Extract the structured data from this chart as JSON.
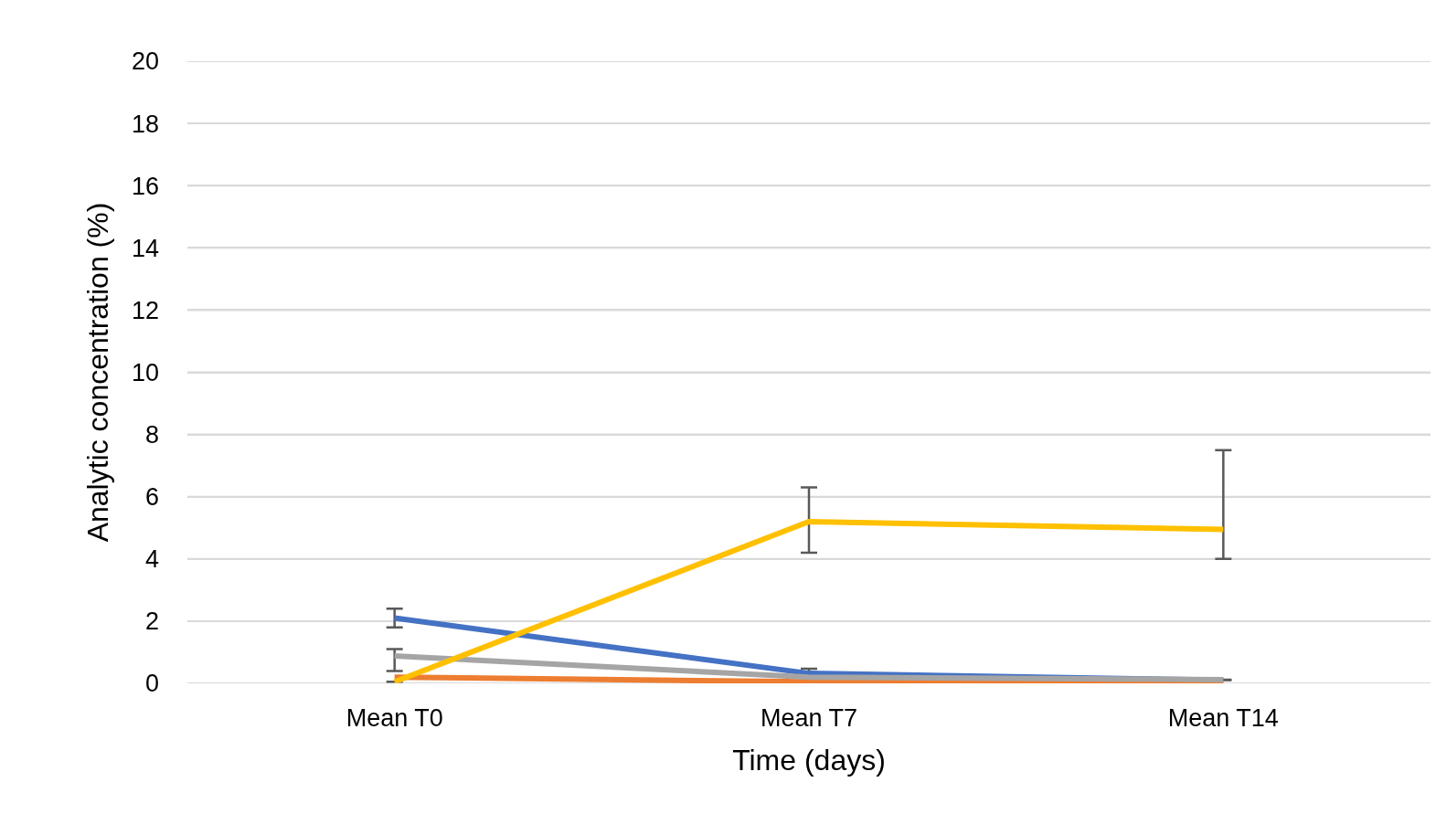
{
  "chart_data": {
    "type": "line",
    "xlabel": "Time (days)",
    "ylabel": "Analytic concentration (%)",
    "categories": [
      "Mean T0",
      "Mean T7",
      "Mean T14"
    ],
    "ylim": [
      0,
      20
    ],
    "yticks": [
      0,
      2,
      4,
      6,
      8,
      10,
      12,
      14,
      16,
      18,
      20
    ],
    "grid": "y",
    "marker": "none",
    "series": [
      {
        "color": "#4472c4",
        "values": [
          2.1,
          0.32,
          0.1
        ],
        "errors": [
          [
            1.8,
            2.4
          ],
          [
            0.17,
            0.47
          ],
          null
        ]
      },
      {
        "color": "#ed7d31",
        "values": [
          0.2,
          0.05,
          0.02
        ]
      },
      {
        "color": "#a5a5a5",
        "values": [
          0.88,
          0.2,
          0.12
        ],
        "errors": [
          [
            0.4,
            1.1
          ],
          null,
          null
        ]
      },
      {
        "color": "#ffc000",
        "values": [
          0.05,
          5.2,
          4.95
        ],
        "errors": [
          null,
          [
            4.2,
            6.3
          ],
          [
            4.0,
            7.5
          ]
        ]
      }
    ]
  }
}
